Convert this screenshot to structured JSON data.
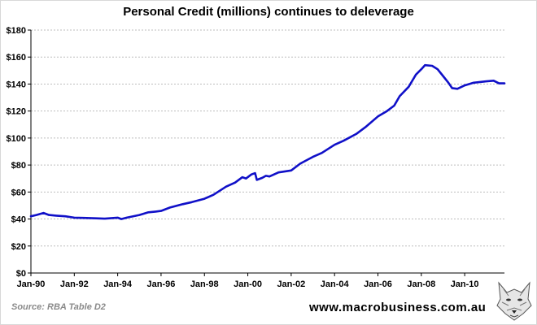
{
  "chart_data": {
    "type": "line",
    "title": "Personal Credit (millions) continues to deleverage",
    "xlabel": "",
    "ylabel": "",
    "ylim": [
      0,
      180
    ],
    "y_ticks": [
      "$0",
      "$20",
      "$40",
      "$60",
      "$80",
      "$100",
      "$120",
      "$140",
      "$160",
      "$180"
    ],
    "x_tick_labels": [
      "Jan-90",
      "Jan-92",
      "Jan-94",
      "Jan-96",
      "Jan-98",
      "Jan-00",
      "Jan-02",
      "Jan-04",
      "Jan-06",
      "Jan-08",
      "Jan-10"
    ],
    "x_range": [
      "1990-01",
      "2011-11"
    ],
    "grid": "horizontal dashed",
    "legend": "none",
    "line_color": "#1010c8",
    "series": [
      {
        "values": [
          [
            "1990-01",
            42
          ],
          [
            "1990-04",
            43
          ],
          [
            "1990-08",
            44.5
          ],
          [
            "1990-11",
            43
          ],
          [
            "1991-03",
            42.5
          ],
          [
            "1991-08",
            42
          ],
          [
            "1992-01",
            41
          ],
          [
            "1992-06",
            40.8
          ],
          [
            "1993-01",
            40.5
          ],
          [
            "1993-06",
            40.3
          ],
          [
            "1994-01",
            41
          ],
          [
            "1994-03",
            40
          ],
          [
            "1994-06",
            41
          ],
          [
            "1995-01",
            43
          ],
          [
            "1995-06",
            45
          ],
          [
            "1995-10",
            45.5
          ],
          [
            "1996-01",
            46
          ],
          [
            "1996-06",
            48.5
          ],
          [
            "1997-01",
            51
          ],
          [
            "1997-06",
            52.5
          ],
          [
            "1998-01",
            55
          ],
          [
            "1998-06",
            58
          ],
          [
            "1999-01",
            64
          ],
          [
            "1999-06",
            67
          ],
          [
            "1999-10",
            71
          ],
          [
            "1999-12",
            70
          ],
          [
            "2000-03",
            73
          ],
          [
            "2000-05",
            74
          ],
          [
            "2000-06",
            69
          ],
          [
            "2000-09",
            70.5
          ],
          [
            "2000-11",
            72
          ],
          [
            "2001-01",
            71.5
          ],
          [
            "2001-06",
            74.5
          ],
          [
            "2002-01",
            76
          ],
          [
            "2002-06",
            81
          ],
          [
            "2003-01",
            86
          ],
          [
            "2003-06",
            89
          ],
          [
            "2004-01",
            95
          ],
          [
            "2004-06",
            98
          ],
          [
            "2005-01",
            103
          ],
          [
            "2005-06",
            108
          ],
          [
            "2006-01",
            116
          ],
          [
            "2006-06",
            120
          ],
          [
            "2006-10",
            124
          ],
          [
            "2007-01",
            131
          ],
          [
            "2007-06",
            138
          ],
          [
            "2007-10",
            147
          ],
          [
            "2008-01",
            151
          ],
          [
            "2008-03",
            154
          ],
          [
            "2008-07",
            153.5
          ],
          [
            "2008-10",
            151
          ],
          [
            "2009-01",
            146
          ],
          [
            "2009-04",
            141
          ],
          [
            "2009-06",
            137
          ],
          [
            "2009-09",
            136.5
          ],
          [
            "2010-01",
            139
          ],
          [
            "2010-06",
            141
          ],
          [
            "2011-01",
            142
          ],
          [
            "2011-05",
            142.5
          ],
          [
            "2011-08",
            140.5
          ],
          [
            "2011-11",
            140.5
          ]
        ]
      }
    ]
  },
  "footer": {
    "source": "Source: RBA Table D2",
    "url": "www.macrobusiness.com.au"
  }
}
